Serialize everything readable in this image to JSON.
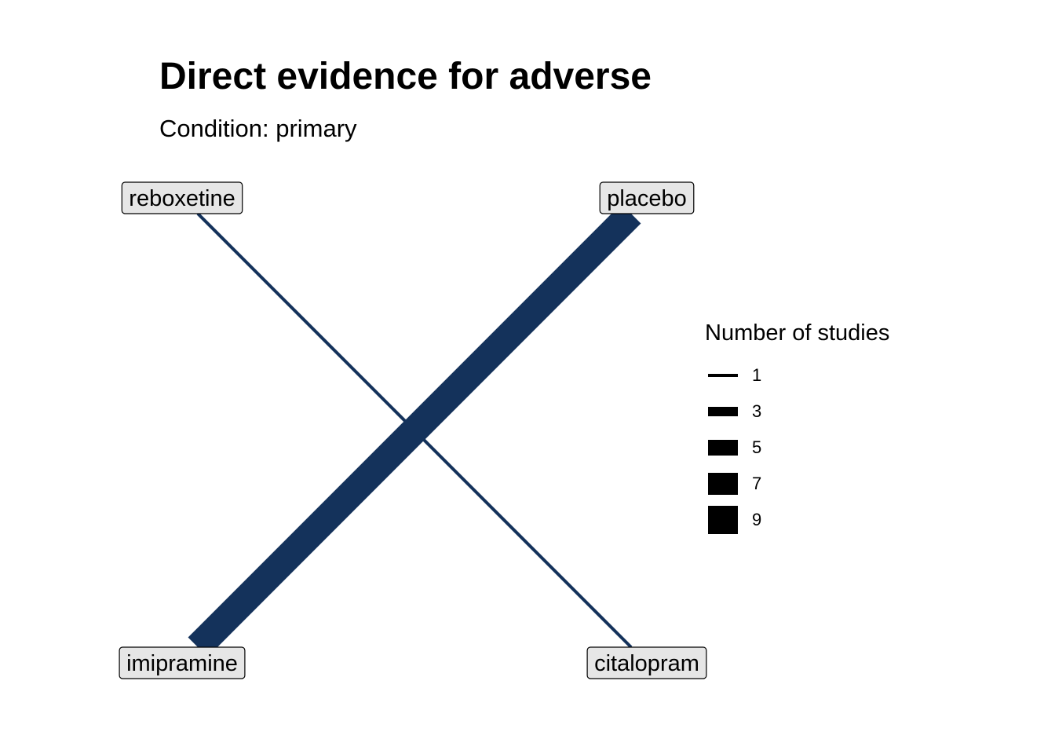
{
  "title": "Direct evidence for adverse",
  "subtitle": "Condition: primary",
  "colors": {
    "edge": "#14325b",
    "node_fill": "#e6e6e6",
    "node_border": "#000000"
  },
  "nodes": [
    {
      "id": "reboxetine",
      "label": "reboxetine"
    },
    {
      "id": "placebo",
      "label": "placebo"
    },
    {
      "id": "imipramine",
      "label": "imipramine"
    },
    {
      "id": "citalopram",
      "label": "citalopram"
    }
  ],
  "edges": [
    {
      "from": "reboxetine",
      "to": "citalopram",
      "studies": 1
    },
    {
      "from": "placebo",
      "to": "imipramine",
      "studies": 9
    }
  ],
  "legend": {
    "title": "Number of studies",
    "items": [
      {
        "label": "1",
        "value": 1
      },
      {
        "label": "3",
        "value": 3
      },
      {
        "label": "5",
        "value": 5
      },
      {
        "label": "7",
        "value": 7
      },
      {
        "label": "9",
        "value": 9
      }
    ]
  }
}
